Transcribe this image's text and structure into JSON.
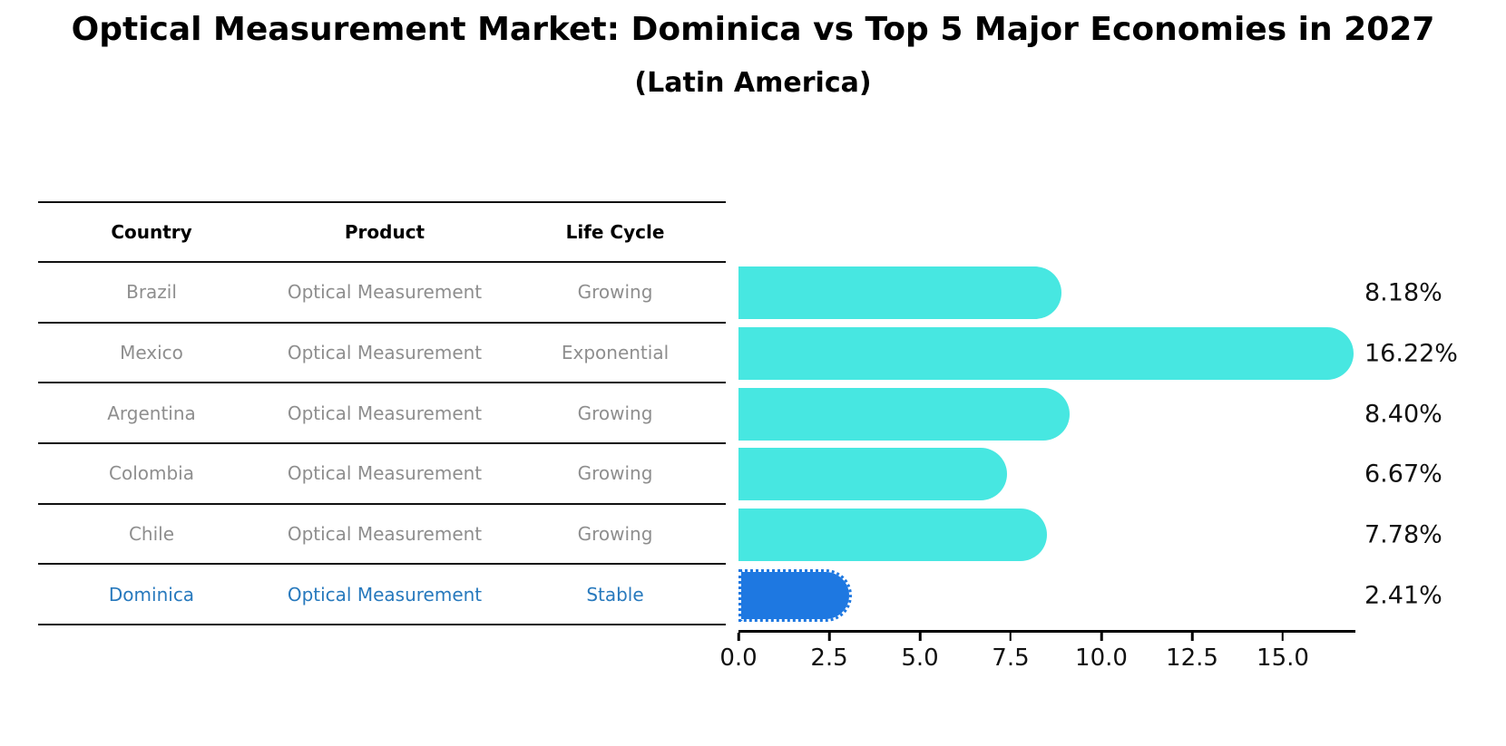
{
  "title": "Optical Measurement Market: Dominica vs Top 5 Major Economies in 2027",
  "subtitle": "(Latin America)",
  "table": {
    "headers": [
      "Country",
      "Product",
      "Life Cycle"
    ],
    "rows": [
      {
        "country": "Brazil",
        "product": "Optical Measurement",
        "life_cycle": "Growing"
      },
      {
        "country": "Mexico",
        "product": "Optical Measurement",
        "life_cycle": "Exponential"
      },
      {
        "country": "Argentina",
        "product": "Optical Measurement",
        "life_cycle": "Growing"
      },
      {
        "country": "Colombia",
        "product": "Optical Measurement",
        "life_cycle": "Growing"
      },
      {
        "country": "Chile",
        "product": "Optical Measurement",
        "life_cycle": "Growing"
      },
      {
        "country": "Dominica",
        "product": "Optical Measurement",
        "life_cycle": "Stable"
      }
    ]
  },
  "chart_data": {
    "type": "bar",
    "orientation": "horizontal",
    "title": "Optical Measurement Market: Dominica vs Top 5 Major Economies in 2027",
    "subtitle": "(Latin America)",
    "categories": [
      "Brazil",
      "Mexico",
      "Argentina",
      "Colombia",
      "Chile",
      "Dominica"
    ],
    "values": [
      8.18,
      16.22,
      8.4,
      6.67,
      7.78,
      2.41
    ],
    "value_labels": [
      "8.18%",
      "16.22%",
      "8.40%",
      "6.67%",
      "7.78%",
      "2.41%"
    ],
    "unit": "percent",
    "xlim": [
      0,
      17
    ],
    "xticks": [
      {
        "value": 0,
        "label": "0.0"
      },
      {
        "value": 2.5,
        "label": "2.5"
      },
      {
        "value": 5,
        "label": "5.0"
      },
      {
        "value": 7.5,
        "label": "7.5"
      },
      {
        "value": 10,
        "label": "10.0"
      },
      {
        "value": 12.5,
        "label": "12.5"
      },
      {
        "value": 15,
        "label": "15.0"
      }
    ],
    "highlight_index": 5,
    "bar_color": "#47e7e1",
    "highlight_color": "#1e78e1",
    "highlight_text_color": "#2779bd",
    "grid": false,
    "legend": false
  }
}
